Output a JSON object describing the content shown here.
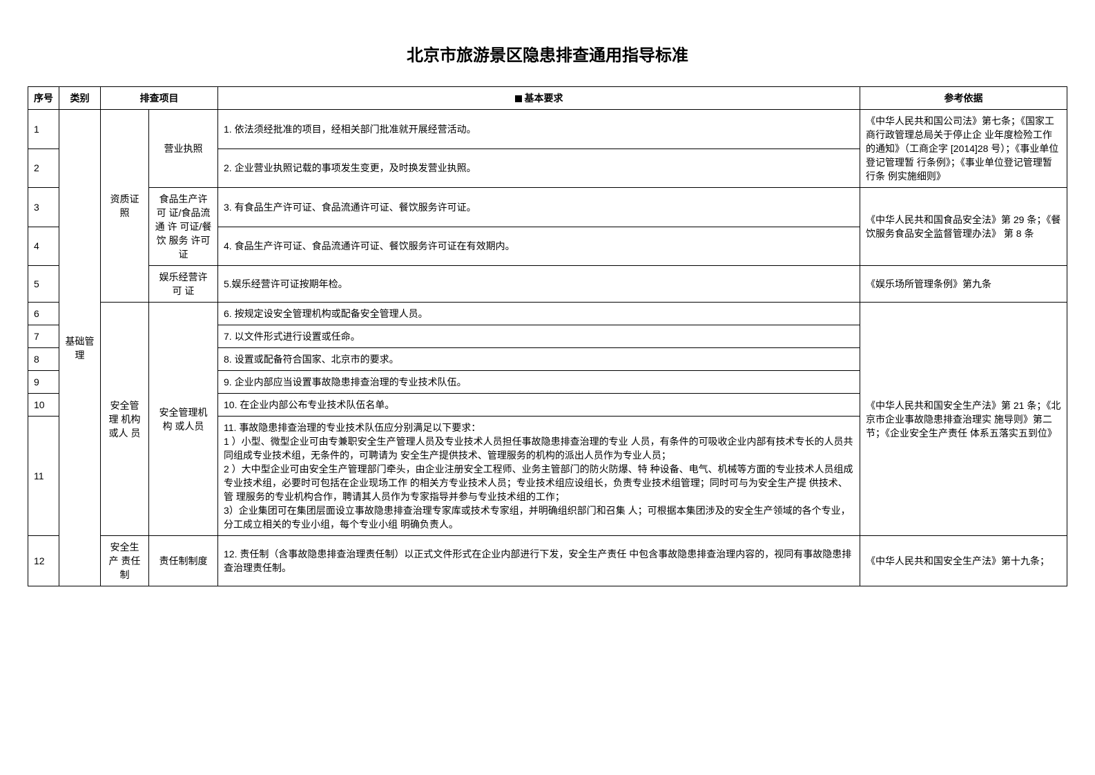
{
  "title": "北京市旅游景区隐患排查通用指导标准",
  "headers": {
    "idx": "序号",
    "category": "类别",
    "item": "排查项目",
    "requirement": "基本要求",
    "reference": "参考依据"
  },
  "category1": "基础管 理",
  "sub_qual": "资质证照",
  "sub_yingye": "营业执照",
  "sub_food": "食品生产许可 证/食品流通 许 可证/餐饮 服务 许可证",
  "sub_ent": "娱乐经营许可 证",
  "sub_safety_org": "安全管理 机构或人 员",
  "sub_safety_org2": "安全管理机构 或人员",
  "sub_resp": "安全生产 责任制",
  "sub_resp2": "责任制制度",
  "r1": "1. 依法须经批准的项目，经相关部门批准就开展经营活动。",
  "r2": "2. 企业营业执照记载的事项发生变更，及时换发营业执照。",
  "r3": "3. 有食品生产许可证、食品流通许可证、餐饮服务许可证。",
  "r4": "4. 食品生产许可证、食品流通许可证、餐饮服务许可证在有效期内。",
  "r5": "5.娱乐经营许可证按期年检。",
  "r6": "6. 按规定设安全管理机构或配备安全管理人员。",
  "r7": "7. 以文件形式进行设置或任命。",
  "r8": "8. 设置或配备符合国家、北京市的要求。",
  "r9": "9. 企业内部应当设置事故隐患排查治理的专业技术队伍。",
  "r10": "10. 在企业内部公布专业技术队伍名单。",
  "r11": "11. 事故隐患排查治理的专业技术队伍应分别满足以下要求：\n1 ）小型、微型企业可由专兼职安全生产管理人员及专业技术人员担任事故隐患排查治理的专业 人员，有条件的可吸收企业内部有技术专长的人员共同组成专业技术组，无条件的，可聘请为 安全生产提供技术、管理服务的机构的派出人员作为专业人员；\n2 ）大中型企业可由安全生产管理部门牵头，由企业注册安全工程师、业务主管部门的防火防爆、特 种设备、电气、机械等方面的专业技术人员组成专业技术组，必要时可包括在企业现场工作 的相关方专业技术人员；专业技术组应设组长，负责专业技术组管理；同时可与为安全生产提 供技术、管 理服务的专业机构合作，聘请其人员作为专家指导并参与专业技术组的工作；\n3）企业集团可在集团层面设立事故隐患排查治理专家库或技术专家组，并明确组织部门和召集 人；可根据本集团涉及的安全生产领域的各个专业，分工成立相关的专业小组，每个专业小组 明确负责人。",
  "r12": "12. 责任制（含事故隐患排查治理责任制）以正式文件形式在企业内部进行下发，安全生产责任 中包含事故隐患排查治理内容的，视同有事故隐患排查治理责任制。",
  "ref1": "《中华人民共和国公司法》第七条；《国家工商行政管理总局关于停止企 业年度检殓工作的通知》（工商企字 [2014]28 号）；《事业单位登记管理暂 行条例》；《事业单位登记管理暂行条 例实施细则》",
  "ref3": "《中华人民共和国食品安全法》第 29 条；《餐饮服务食品安全监督管理办法》 第 8 条",
  "ref5": "《娱乐场所管理条例》第九条",
  "ref6": "《中华人民共和国安全生产法》第 21 条；《北京市企业事故隐患排查治理实 施导则》第二节；《企业安全生产责任 体系五落实五到位》",
  "ref12": "《中华人民共和国安全生产法》第十九条；",
  "idx": {
    "1": "1",
    "2": "2",
    "3": "3",
    "4": "4",
    "5": "5",
    "6": "6",
    "7": "7",
    "8": "8",
    "9": "9",
    "10": "10",
    "11": "11",
    "12": "12"
  }
}
